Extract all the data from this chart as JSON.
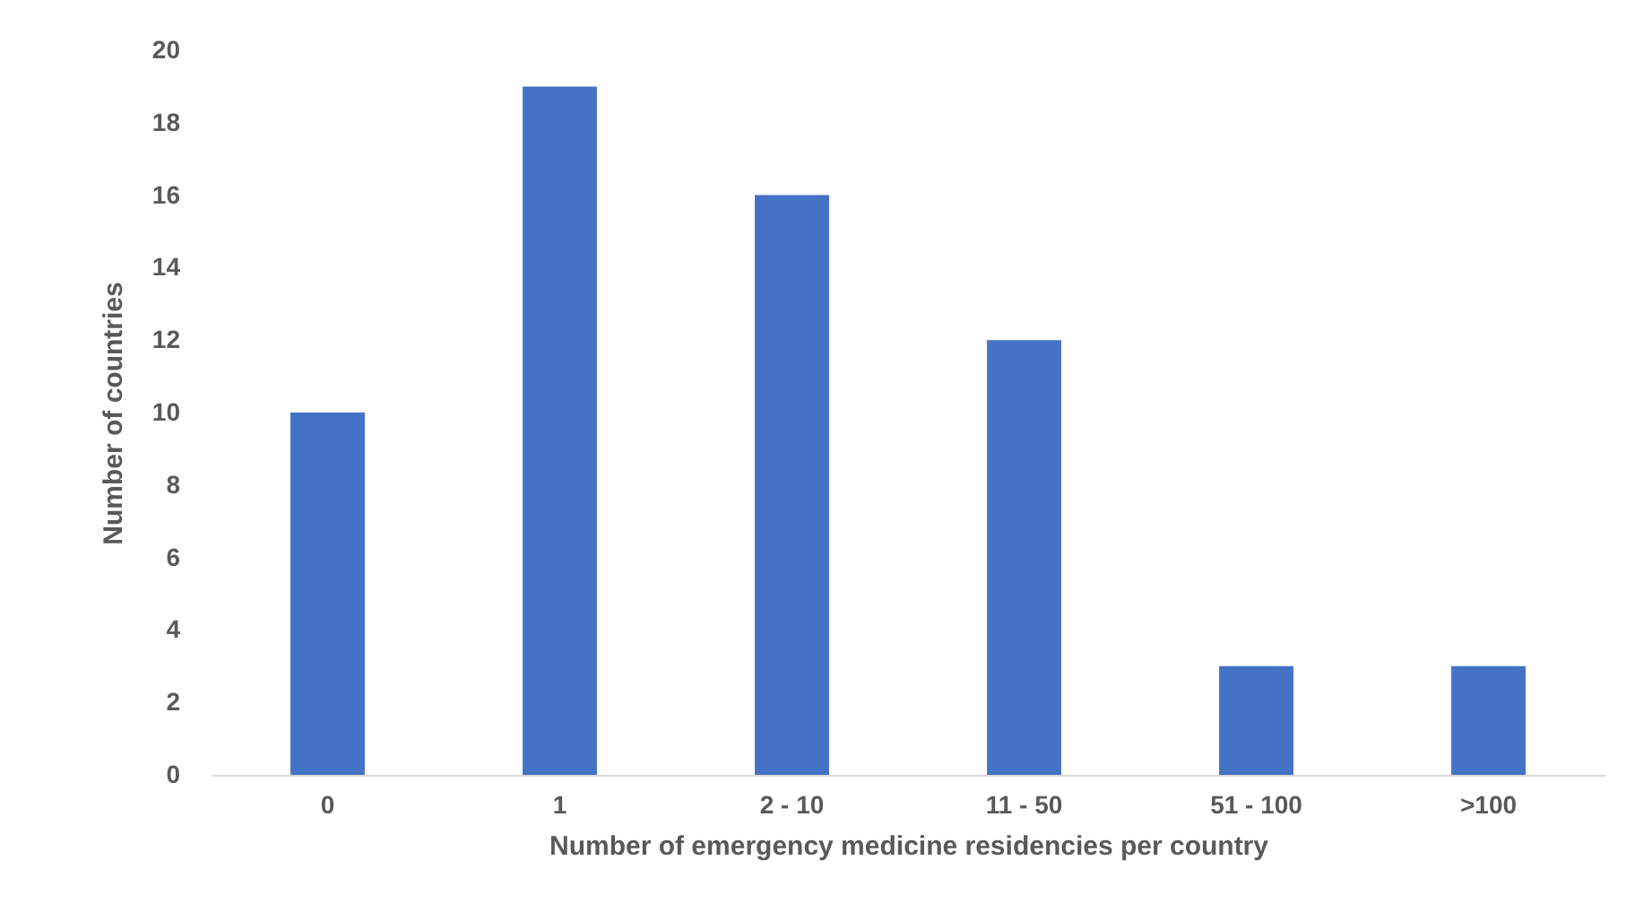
{
  "chart_data": {
    "type": "bar",
    "xlabel": "Number of emergency medicine residencies per country",
    "ylabel": "Number of countries",
    "categories": [
      "0",
      "1",
      "2 - 10",
      "11 - 50",
      "51 - 100",
      ">100"
    ],
    "values": [
      10,
      19,
      16,
      12,
      3,
      3
    ],
    "color": "#4472c4",
    "ylim": [
      0,
      20
    ],
    "yticks": [
      0,
      2,
      4,
      6,
      8,
      10,
      12,
      14,
      16,
      18,
      20
    ],
    "grid": false
  }
}
